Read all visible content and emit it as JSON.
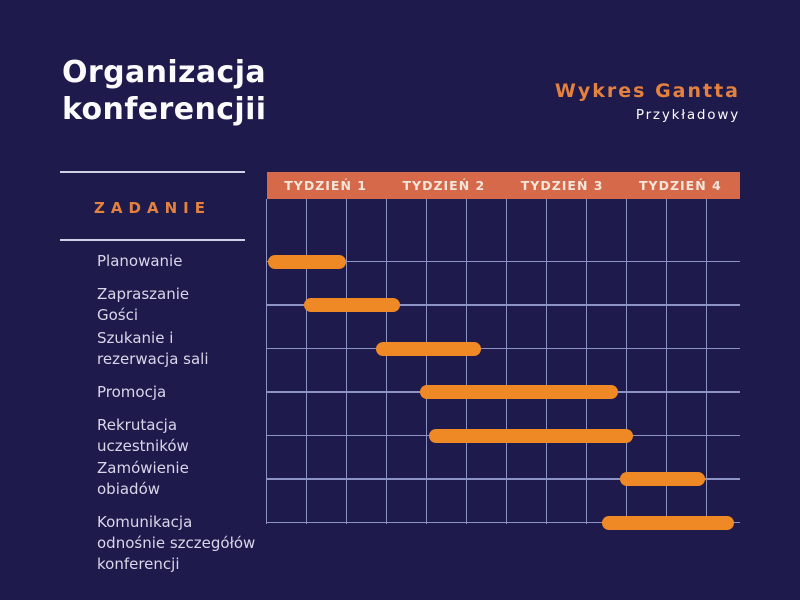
{
  "title": "Organizacja\nkonferencjii",
  "header": {
    "heading": "Wykres Gantta",
    "subheading": "Przykładowy"
  },
  "task_column": {
    "heading": "ZADANIE"
  },
  "chart_data": {
    "type": "gantt",
    "title": "Organizacja konferencjii",
    "week_headers": [
      "TYDZIEŃ 1",
      "TYDZIEŃ 2",
      "TYDZIEŃ 3",
      "TYDZIEŃ 4"
    ],
    "weeks_total": 4,
    "grid_subcolumns_per_week": 3,
    "tasks": [
      {
        "label": "Planowanie",
        "start_week": 0.01,
        "end_week": 0.67
      },
      {
        "label": "Zapraszanie\nGości",
        "start_week": 0.32,
        "end_week": 1.13
      },
      {
        "label": "Szukanie i\nrezerwacja sali",
        "start_week": 0.93,
        "end_week": 1.81
      },
      {
        "label": "Promocja",
        "start_week": 1.3,
        "end_week": 2.97
      },
      {
        "label": "Rekrutacja\nuczestników",
        "start_week": 1.37,
        "end_week": 3.1
      },
      {
        "label": "Zamówienie\nobiadów",
        "start_week": 2.99,
        "end_week": 3.71
      },
      {
        "label": "Komunikacja\nodnośnie szczegółów\nkonferencji",
        "start_week": 2.84,
        "end_week": 3.95
      }
    ]
  },
  "colors": {
    "background": "#1e1a4b",
    "header_band": "#d5694a",
    "band_text": "#f2e5da",
    "grid_line": "#8d93c4",
    "divider_line": "#cfcfe6",
    "bar": "#ee8926",
    "accent_orange": "#e5813e",
    "title_text": "#fbfafd",
    "task_text": "#d9d6e9"
  }
}
